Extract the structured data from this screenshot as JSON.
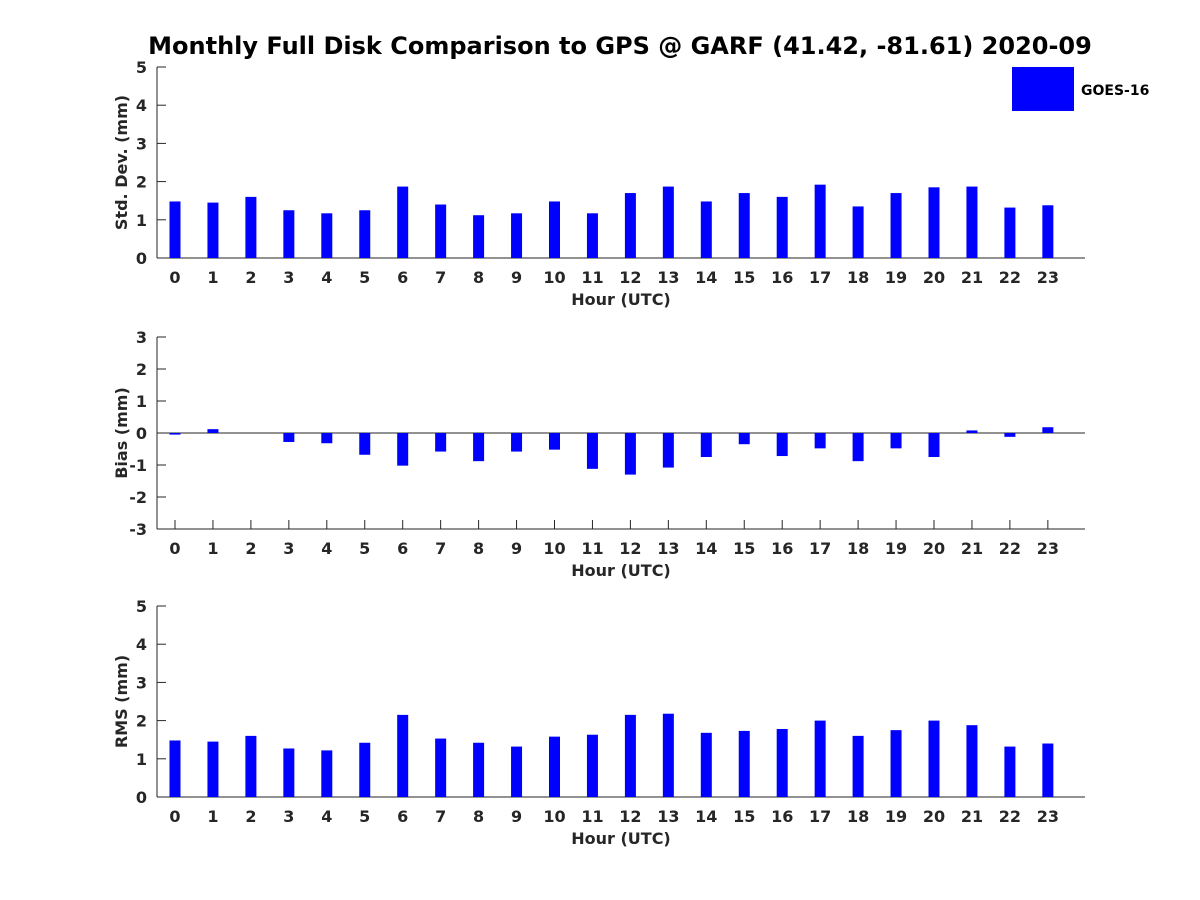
{
  "title": "Monthly Full Disk Comparison to GPS @ GARF (41.42, -81.61) 2020-09",
  "legend": {
    "label": "GOES-16",
    "color": "#0000ff",
    "placement": "top-right"
  },
  "chart_data": [
    {
      "type": "bar",
      "id": "std",
      "xlabel": "Hour (UTC)",
      "ylabel": "Std. Dev. (mm)",
      "ylim": [
        0,
        5
      ],
      "yticks": [
        0,
        1,
        2,
        3,
        4,
        5
      ],
      "categories": [
        "0",
        "1",
        "2",
        "3",
        "4",
        "5",
        "6",
        "7",
        "8",
        "9",
        "10",
        "11",
        "12",
        "13",
        "14",
        "15",
        "16",
        "17",
        "18",
        "19",
        "20",
        "21",
        "22",
        "23"
      ],
      "series": [
        {
          "name": "GOES-16",
          "color": "#0000ff",
          "values": [
            1.48,
            1.45,
            1.6,
            1.25,
            1.17,
            1.25,
            1.87,
            1.4,
            1.12,
            1.17,
            1.48,
            1.17,
            1.7,
            1.87,
            1.48,
            1.7,
            1.6,
            1.92,
            1.35,
            1.7,
            1.85,
            1.87,
            1.32,
            1.38
          ]
        }
      ]
    },
    {
      "type": "bar",
      "id": "bias",
      "xlabel": "Hour (UTC)",
      "ylabel": "Bias (mm)",
      "ylim": [
        -3,
        3
      ],
      "yticks": [
        -3,
        -2,
        -1,
        0,
        1,
        2,
        3
      ],
      "categories": [
        "0",
        "1",
        "2",
        "3",
        "4",
        "5",
        "6",
        "7",
        "8",
        "9",
        "10",
        "11",
        "12",
        "13",
        "14",
        "15",
        "16",
        "17",
        "18",
        "19",
        "20",
        "21",
        "22",
        "23"
      ],
      "series": [
        {
          "name": "GOES-16",
          "color": "#0000ff",
          "values": [
            -0.05,
            0.12,
            0.0,
            -0.28,
            -0.32,
            -0.68,
            -1.02,
            -0.58,
            -0.88,
            -0.58,
            -0.52,
            -1.12,
            -1.3,
            -1.08,
            -0.75,
            -0.35,
            -0.72,
            -0.48,
            -0.88,
            -0.48,
            -0.75,
            0.08,
            -0.12,
            0.18
          ]
        }
      ]
    },
    {
      "type": "bar",
      "id": "rms",
      "xlabel": "Hour (UTC)",
      "ylabel": "RMS (mm)",
      "ylim": [
        0,
        5
      ],
      "yticks": [
        0,
        1,
        2,
        3,
        4,
        5
      ],
      "categories": [
        "0",
        "1",
        "2",
        "3",
        "4",
        "5",
        "6",
        "7",
        "8",
        "9",
        "10",
        "11",
        "12",
        "13",
        "14",
        "15",
        "16",
        "17",
        "18",
        "19",
        "20",
        "21",
        "22",
        "23"
      ],
      "series": [
        {
          "name": "GOES-16",
          "color": "#0000ff",
          "values": [
            1.48,
            1.45,
            1.6,
            1.27,
            1.22,
            1.42,
            2.15,
            1.53,
            1.42,
            1.32,
            1.58,
            1.63,
            2.15,
            2.18,
            1.68,
            1.73,
            1.78,
            2.0,
            1.6,
            1.75,
            2.0,
            1.88,
            1.32,
            1.4
          ]
        }
      ]
    }
  ]
}
